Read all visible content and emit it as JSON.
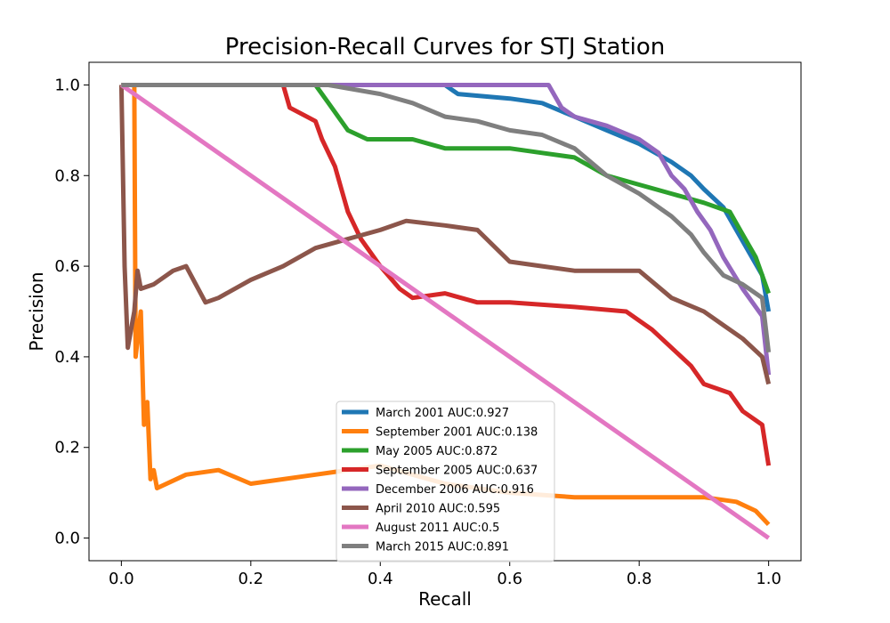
{
  "chart_data": {
    "type": "line",
    "title": "Precision-Recall Curves for STJ Station",
    "xlabel": "Recall",
    "ylabel": "Precision",
    "xlim": [
      -0.05,
      1.05
    ],
    "ylim": [
      -0.05,
      1.05
    ],
    "xticks": [
      "0.0",
      "0.2",
      "0.4",
      "0.6",
      "0.8",
      "1.0"
    ],
    "yticks": [
      "0.0",
      "0.2",
      "0.4",
      "0.6",
      "0.8",
      "1.0"
    ],
    "grid": false,
    "legend_position": "lower-center",
    "series": [
      {
        "name": "March 2001 AUC:0.927",
        "color": "#1f77b4",
        "points": [
          [
            0,
            1
          ],
          [
            0.5,
            1
          ],
          [
            0.52,
            0.98
          ],
          [
            0.6,
            0.97
          ],
          [
            0.65,
            0.96
          ],
          [
            0.7,
            0.93
          ],
          [
            0.75,
            0.9
          ],
          [
            0.8,
            0.87
          ],
          [
            0.85,
            0.83
          ],
          [
            0.88,
            0.8
          ],
          [
            0.9,
            0.77
          ],
          [
            0.93,
            0.73
          ],
          [
            0.95,
            0.68
          ],
          [
            0.97,
            0.63
          ],
          [
            0.99,
            0.58
          ],
          [
            1.0,
            0.5
          ]
        ]
      },
      {
        "name": "September 2001 AUC:0.138",
        "color": "#ff7f0e",
        "points": [
          [
            0,
            1
          ],
          [
            0.02,
            1
          ],
          [
            0.022,
            0.4
          ],
          [
            0.03,
            0.5
          ],
          [
            0.035,
            0.25
          ],
          [
            0.04,
            0.3
          ],
          [
            0.045,
            0.13
          ],
          [
            0.05,
            0.15
          ],
          [
            0.055,
            0.11
          ],
          [
            0.1,
            0.14
          ],
          [
            0.15,
            0.15
          ],
          [
            0.2,
            0.12
          ],
          [
            0.3,
            0.14
          ],
          [
            0.4,
            0.16
          ],
          [
            0.45,
            0.14
          ],
          [
            0.5,
            0.12
          ],
          [
            0.6,
            0.1
          ],
          [
            0.7,
            0.09
          ],
          [
            0.8,
            0.09
          ],
          [
            0.9,
            0.09
          ],
          [
            0.95,
            0.08
          ],
          [
            0.98,
            0.06
          ],
          [
            1.0,
            0.03
          ]
        ]
      },
      {
        "name": "May 2005 AUC:0.872",
        "color": "#2ca02c",
        "points": [
          [
            0,
            1
          ],
          [
            0.3,
            1
          ],
          [
            0.32,
            0.96
          ],
          [
            0.35,
            0.9
          ],
          [
            0.38,
            0.88
          ],
          [
            0.45,
            0.88
          ],
          [
            0.5,
            0.86
          ],
          [
            0.6,
            0.86
          ],
          [
            0.65,
            0.85
          ],
          [
            0.7,
            0.84
          ],
          [
            0.75,
            0.8
          ],
          [
            0.8,
            0.78
          ],
          [
            0.85,
            0.76
          ],
          [
            0.9,
            0.74
          ],
          [
            0.94,
            0.72
          ],
          [
            0.96,
            0.67
          ],
          [
            0.98,
            0.62
          ],
          [
            1.0,
            0.54
          ]
        ]
      },
      {
        "name": "September 2005 AUC:0.637",
        "color": "#d62728",
        "points": [
          [
            0,
            1
          ],
          [
            0.25,
            1
          ],
          [
            0.26,
            0.95
          ],
          [
            0.3,
            0.92
          ],
          [
            0.31,
            0.88
          ],
          [
            0.33,
            0.82
          ],
          [
            0.34,
            0.77
          ],
          [
            0.35,
            0.72
          ],
          [
            0.37,
            0.66
          ],
          [
            0.4,
            0.6
          ],
          [
            0.43,
            0.55
          ],
          [
            0.45,
            0.53
          ],
          [
            0.5,
            0.54
          ],
          [
            0.55,
            0.52
          ],
          [
            0.6,
            0.52
          ],
          [
            0.7,
            0.51
          ],
          [
            0.78,
            0.5
          ],
          [
            0.82,
            0.46
          ],
          [
            0.85,
            0.42
          ],
          [
            0.88,
            0.38
          ],
          [
            0.9,
            0.34
          ],
          [
            0.94,
            0.32
          ],
          [
            0.96,
            0.28
          ],
          [
            0.99,
            0.25
          ],
          [
            1.0,
            0.16
          ]
        ]
      },
      {
        "name": "December 2006 AUC:0.916",
        "color": "#9467bd",
        "points": [
          [
            0,
            1
          ],
          [
            0.66,
            1
          ],
          [
            0.68,
            0.95
          ],
          [
            0.7,
            0.93
          ],
          [
            0.75,
            0.91
          ],
          [
            0.8,
            0.88
          ],
          [
            0.83,
            0.85
          ],
          [
            0.85,
            0.8
          ],
          [
            0.87,
            0.77
          ],
          [
            0.89,
            0.72
          ],
          [
            0.91,
            0.68
          ],
          [
            0.93,
            0.62
          ],
          [
            0.96,
            0.55
          ],
          [
            0.99,
            0.49
          ],
          [
            1.0,
            0.36
          ]
        ]
      },
      {
        "name": "April 2010 AUC:0.595",
        "color": "#8c564b",
        "points": [
          [
            0,
            1
          ],
          [
            0.005,
            0.6
          ],
          [
            0.01,
            0.42
          ],
          [
            0.02,
            0.5
          ],
          [
            0.025,
            0.59
          ],
          [
            0.03,
            0.55
          ],
          [
            0.05,
            0.56
          ],
          [
            0.08,
            0.59
          ],
          [
            0.1,
            0.6
          ],
          [
            0.13,
            0.52
          ],
          [
            0.15,
            0.53
          ],
          [
            0.2,
            0.57
          ],
          [
            0.25,
            0.6
          ],
          [
            0.3,
            0.64
          ],
          [
            0.35,
            0.66
          ],
          [
            0.4,
            0.68
          ],
          [
            0.44,
            0.7
          ],
          [
            0.5,
            0.69
          ],
          [
            0.55,
            0.68
          ],
          [
            0.6,
            0.61
          ],
          [
            0.65,
            0.6
          ],
          [
            0.7,
            0.59
          ],
          [
            0.75,
            0.59
          ],
          [
            0.8,
            0.59
          ],
          [
            0.85,
            0.53
          ],
          [
            0.9,
            0.5
          ],
          [
            0.93,
            0.47
          ],
          [
            0.96,
            0.44
          ],
          [
            0.99,
            0.4
          ],
          [
            1.0,
            0.34
          ]
        ]
      },
      {
        "name": "August 2011 AUC:0.5",
        "color": "#e377c2",
        "points": [
          [
            0,
            1
          ],
          [
            1.0,
            0
          ]
        ]
      },
      {
        "name": "March 2015 AUC:0.891",
        "color": "#7f7f7f",
        "points": [
          [
            0,
            1
          ],
          [
            0.32,
            1
          ],
          [
            0.4,
            0.98
          ],
          [
            0.45,
            0.96
          ],
          [
            0.5,
            0.93
          ],
          [
            0.55,
            0.92
          ],
          [
            0.6,
            0.9
          ],
          [
            0.65,
            0.89
          ],
          [
            0.7,
            0.86
          ],
          [
            0.75,
            0.8
          ],
          [
            0.8,
            0.76
          ],
          [
            0.85,
            0.71
          ],
          [
            0.88,
            0.67
          ],
          [
            0.9,
            0.63
          ],
          [
            0.93,
            0.58
          ],
          [
            0.96,
            0.56
          ],
          [
            0.99,
            0.53
          ],
          [
            1.0,
            0.41
          ]
        ]
      }
    ]
  }
}
